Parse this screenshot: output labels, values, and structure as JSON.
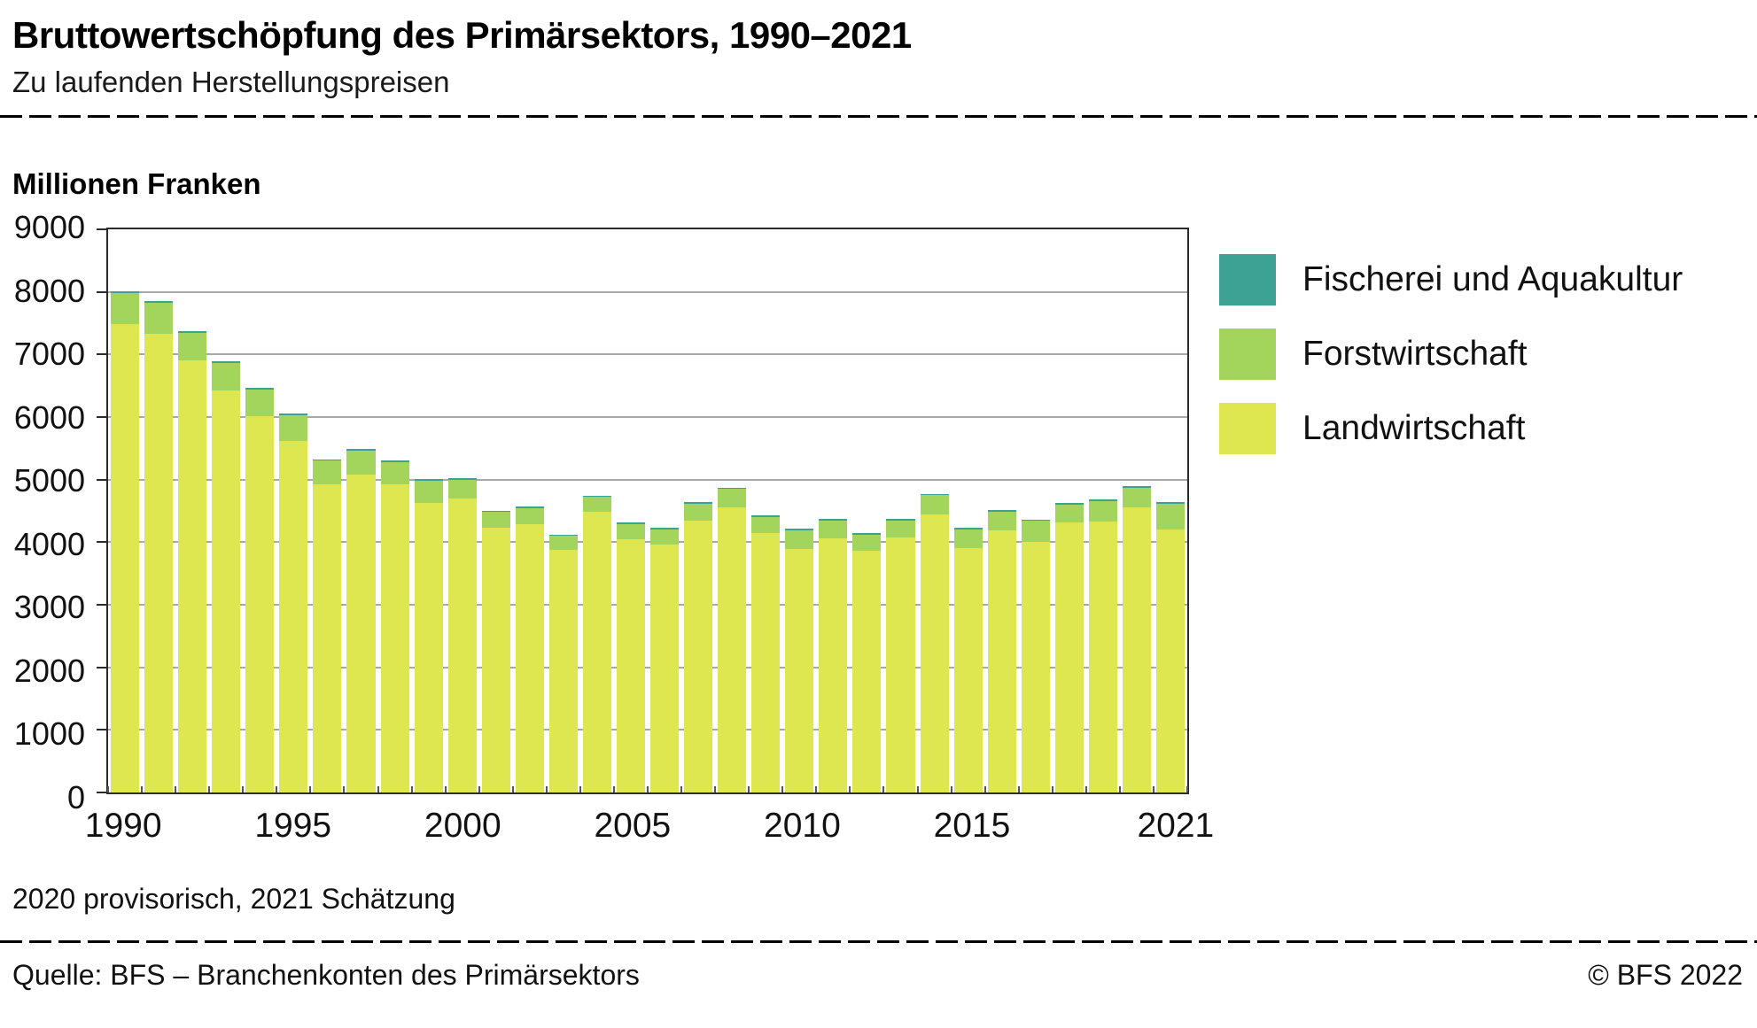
{
  "header": {
    "title": "Bruttowertschöpfung des Primärsektors, 1990–2021",
    "subtitle": "Zu laufenden Herstellungspreisen"
  },
  "chart": {
    "unit_label": "Millionen Franken",
    "footnote": "2020 provisorisch, 2021 Schätzung"
  },
  "legend": {
    "items": [
      {
        "label": "Fischerei und Aquakultur",
        "color": "#3da294"
      },
      {
        "label": "Forstwirtschaft",
        "color": "#a3d45c"
      },
      {
        "label": "Landwirtschaft",
        "color": "#dfe750"
      }
    ]
  },
  "chart_data": {
    "type": "bar",
    "stacked": true,
    "title": "Bruttowertschöpfung des Primärsektors, 1990–2021",
    "subtitle": "Zu laufenden Herstellungspreisen",
    "ylabel": "Millionen Franken",
    "xlabel": "",
    "ylim": [
      0,
      9000
    ],
    "ytick_step": 1000,
    "yticks": [
      0,
      1000,
      2000,
      3000,
      4000,
      5000,
      6000,
      7000,
      8000,
      9000
    ],
    "grid": "horizontal",
    "legend_position": "right",
    "years": [
      1990,
      1991,
      1992,
      1993,
      1994,
      1995,
      1996,
      1997,
      1998,
      1999,
      2000,
      2001,
      2002,
      2003,
      2004,
      2005,
      2006,
      2007,
      2008,
      2009,
      2010,
      2011,
      2012,
      2013,
      2014,
      2015,
      2016,
      2017,
      2018,
      2019,
      2020,
      2021
    ],
    "xticks": [
      {
        "label": "1990",
        "index": 0
      },
      {
        "label": "1995",
        "index": 5
      },
      {
        "label": "2000",
        "index": 10
      },
      {
        "label": "2005",
        "index": 15
      },
      {
        "label": "2010",
        "index": 20
      },
      {
        "label": "2015",
        "index": 25
      },
      {
        "label": "2021",
        "index": 31
      }
    ],
    "series": [
      {
        "name": "Landwirtschaft",
        "color": "#dfe750",
        "values": [
          7480,
          7330,
          6900,
          6430,
          6020,
          5620,
          4930,
          5080,
          4920,
          4630,
          4700,
          4230,
          4290,
          3880,
          4480,
          4050,
          3960,
          4350,
          4560,
          4140,
          3890,
          4060,
          3870,
          4080,
          4440,
          3900,
          4190,
          4010,
          4310,
          4330,
          4550,
          4200
        ]
      },
      {
        "name": "Forstwirtschaft",
        "color": "#a3d45c",
        "values": [
          500,
          500,
          450,
          430,
          420,
          410,
          370,
          380,
          360,
          350,
          300,
          250,
          250,
          220,
          240,
          240,
          250,
          260,
          290,
          260,
          300,
          290,
          250,
          270,
          310,
          300,
          300,
          330,
          290,
          330,
          320,
          410
        ]
      },
      {
        "name": "Fischerei und Aquakultur",
        "color": "#3da294",
        "values": [
          30,
          30,
          30,
          25,
          25,
          25,
          25,
          25,
          25,
          25,
          25,
          25,
          25,
          25,
          25,
          25,
          25,
          25,
          25,
          25,
          25,
          25,
          25,
          25,
          25,
          25,
          25,
          25,
          25,
          25,
          25,
          25
        ]
      }
    ]
  },
  "footer": {
    "source": "Quelle: BFS – Branchenkonten des Primärsektors",
    "copyright": "© BFS 2022"
  }
}
